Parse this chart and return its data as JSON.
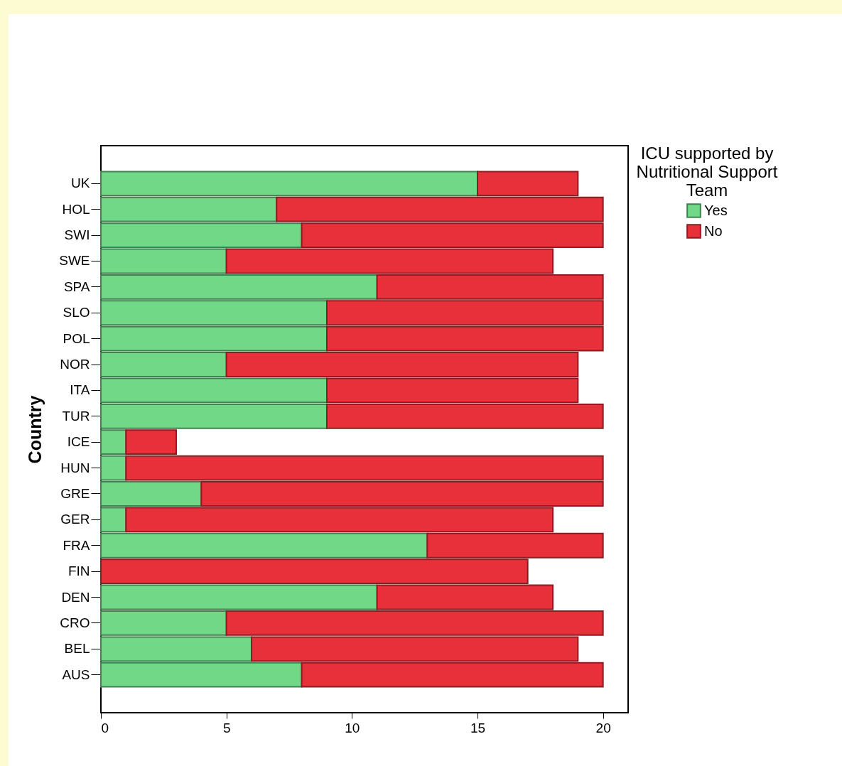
{
  "chart_data": {
    "type": "bar",
    "orientation": "horizontal",
    "stacked": true,
    "ylabel": "Country",
    "legend_title": "ICU supported by Nutritional Support Team",
    "legend": "top right",
    "grid": false,
    "categories": [
      "UK",
      "HOL",
      "SWI",
      "SWE",
      "SPA",
      "SLO",
      "POL",
      "NOR",
      "ITA",
      "TUR",
      "ICE",
      "HUN",
      "GRE",
      "GER",
      "FRA",
      "FIN",
      "DEN",
      "CRO",
      "BEL",
      "AUS"
    ],
    "xlim": [
      0,
      21
    ],
    "xticks": [
      0,
      5,
      10,
      15,
      20
    ],
    "series": [
      {
        "name": "Yes",
        "color": "#70d887",
        "values": [
          15,
          7,
          8,
          5,
          11,
          9,
          9,
          5,
          9,
          9,
          1,
          1,
          4,
          1,
          13,
          0,
          11,
          5,
          6,
          8
        ]
      },
      {
        "name": "No",
        "color": "#e8303a",
        "values": [
          4,
          13,
          12,
          13,
          9,
          11,
          11,
          14,
          10,
          11,
          2,
          19,
          16,
          17,
          7,
          17,
          7,
          15,
          13,
          12
        ]
      }
    ]
  }
}
